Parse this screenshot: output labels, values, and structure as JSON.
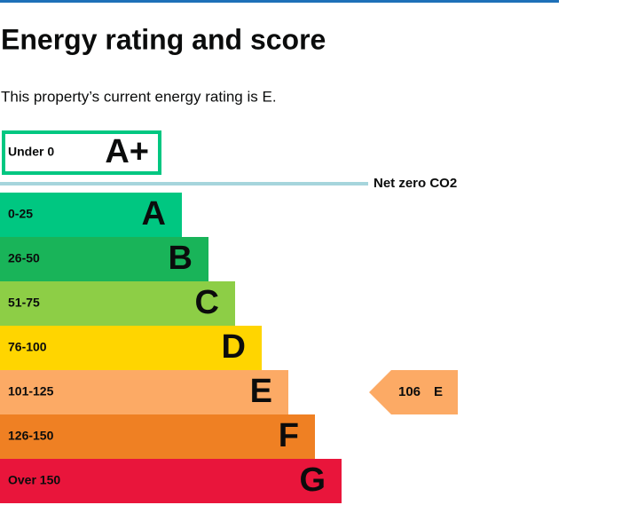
{
  "header": {
    "title": "Energy rating and score",
    "description": "This property’s current energy rating is E."
  },
  "top_band": {
    "range": "Under 0",
    "letter": "A+"
  },
  "net_zero": "Net zero CO2",
  "bands": [
    {
      "range": "0-25",
      "letter": "A"
    },
    {
      "range": "26-50",
      "letter": "B"
    },
    {
      "range": "51-75",
      "letter": "C"
    },
    {
      "range": "76-100",
      "letter": "D"
    },
    {
      "range": "101-125",
      "letter": "E"
    },
    {
      "range": "126-150",
      "letter": "F"
    },
    {
      "range": "Over 150",
      "letter": "G"
    }
  ],
  "current": {
    "score": 106,
    "letter": "E"
  }
}
